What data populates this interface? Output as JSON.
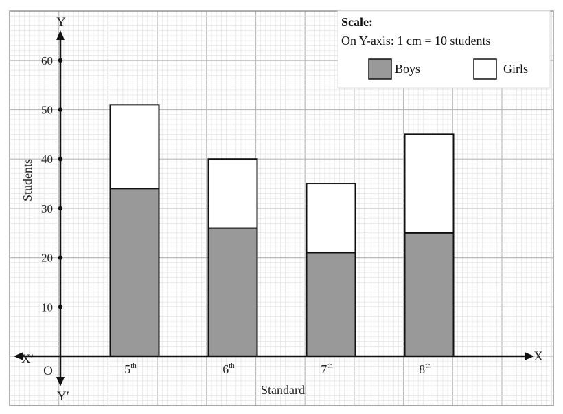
{
  "chart_data": {
    "type": "bar",
    "stacked": true,
    "categories": [
      "5",
      "6",
      "7",
      "8"
    ],
    "category_suffix": "th",
    "series": [
      {
        "name": "Boys",
        "values": [
          34,
          26,
          21,
          25
        ],
        "color": "#999999"
      },
      {
        "name": "Girls",
        "values": [
          17,
          14,
          14,
          20
        ],
        "color": "#ffffff"
      }
    ],
    "ylim": [
      0,
      60
    ],
    "yticks": [
      10,
      20,
      30,
      40,
      50,
      60
    ],
    "xlabel": "Standard",
    "ylabel": "Students",
    "grid": true,
    "legend_position": "top-right",
    "axis_letters": {
      "x": "X",
      "x_neg": "X′",
      "y": "Y",
      "y_neg": "Y′",
      "origin": "O"
    }
  },
  "legend": {
    "title": "Scale:",
    "note": "On Y-axis: 1 cm = 10 students",
    "items": [
      {
        "label": "Boys",
        "color": "#999999"
      },
      {
        "label": "Girls",
        "color": "#ffffff"
      }
    ]
  }
}
